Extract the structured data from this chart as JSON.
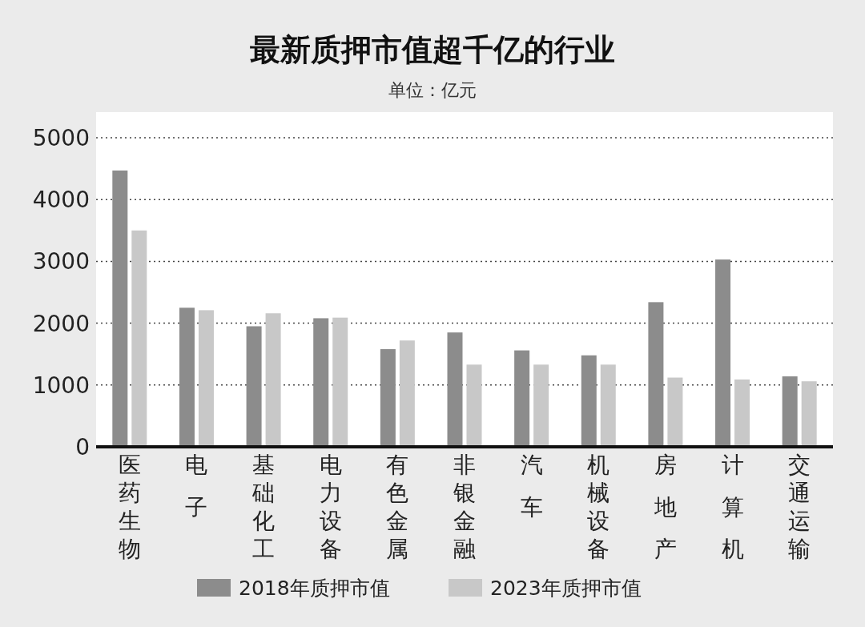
{
  "chart_data": {
    "type": "bar",
    "title": "最新质押市值超千亿的行业",
    "subtitle": "单位：亿元",
    "categories": [
      "医药生物",
      "电子",
      "基础化工",
      "电力设备",
      "有色金属",
      "非银金融",
      "汽车",
      "机械设备",
      "房地产",
      "计算机",
      "交通运输"
    ],
    "series": [
      {
        "name": "2018年质押市值",
        "color": "#8c8c8c",
        "values": [
          4470,
          2250,
          1950,
          2080,
          1580,
          1850,
          1560,
          1480,
          2340,
          3030,
          1140
        ]
      },
      {
        "name": "2023年质押市值",
        "color": "#c8c8c8",
        "values": [
          3500,
          2210,
          2160,
          2090,
          1720,
          1330,
          1330,
          1330,
          1120,
          1090,
          1060
        ]
      }
    ],
    "ylim": [
      0,
      5000
    ],
    "yticks": [
      0,
      1000,
      2000,
      3000,
      4000,
      5000
    ],
    "grid": "y",
    "legend": "bottom"
  }
}
